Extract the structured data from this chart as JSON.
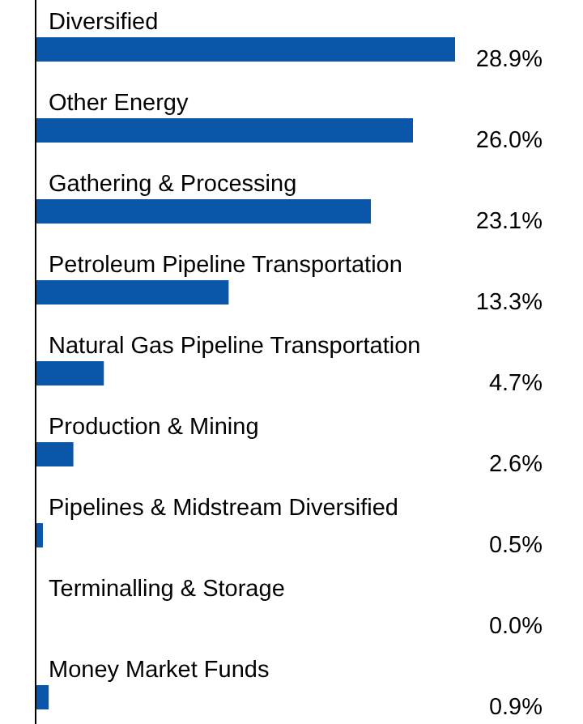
{
  "chart_data": {
    "type": "bar",
    "orientation": "horizontal",
    "categories": [
      "Diversified",
      "Other Energy",
      "Gathering & Processing",
      "Petroleum Pipeline Transportation",
      "Natural Gas Pipeline Transportation",
      "Production & Mining",
      "Pipelines & Midstream Diversified",
      "Terminalling & Storage",
      "Money Market Funds"
    ],
    "values": [
      28.9,
      26.0,
      23.1,
      13.3,
      4.7,
      2.6,
      0.5,
      0.0,
      0.9
    ],
    "value_labels": [
      "28.9%",
      "26.0%",
      "23.1%",
      "13.3%",
      "4.7%",
      "2.6%",
      "0.5%",
      "0.0%",
      "0.9%"
    ],
    "color": "#0a56a8"
  }
}
